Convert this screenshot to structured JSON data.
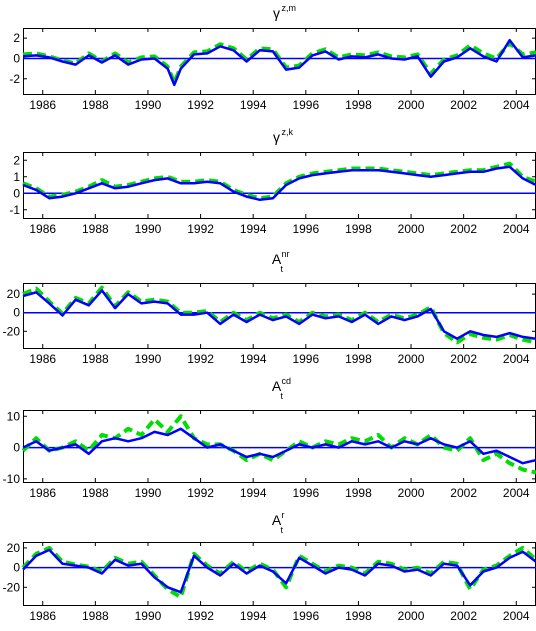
{
  "chart_data": [
    {
      "type": "line",
      "title": "γ",
      "title_sup": "z,m",
      "title_sub": "",
      "xlim": [
        1985.25,
        2004.75
      ],
      "ylim": [
        -3.5,
        3
      ],
      "xticks": [
        1986,
        1988,
        1990,
        1992,
        1994,
        1996,
        1998,
        2000,
        2002,
        2004
      ],
      "yticks": [
        -2,
        0,
        2
      ],
      "zero_line": true,
      "series": [
        {
          "color": "#0000ff",
          "style": "solid",
          "x": [
            1985.25,
            1985.75,
            1986.25,
            1986.75,
            1987.25,
            1987.75,
            1988.25,
            1988.75,
            1989.25,
            1989.75,
            1990.25,
            1990.75,
            1991.0,
            1991.25,
            1991.75,
            1992.25,
            1992.75,
            1993.25,
            1993.75,
            1994.25,
            1994.75,
            1995.25,
            1995.75,
            1996.25,
            1996.75,
            1997.25,
            1997.75,
            1998.25,
            1998.75,
            1999.25,
            1999.75,
            2000.25,
            2000.75,
            2001.25,
            2001.75,
            2002.25,
            2002.75,
            2003.25,
            2003.75,
            2004.25,
            2004.75
          ],
          "y": [
            0.2,
            0.3,
            0.1,
            -0.3,
            -0.6,
            0.3,
            -0.4,
            0.3,
            -0.6,
            -0.1,
            0,
            -1.0,
            -2.6,
            -1.0,
            0.4,
            0.5,
            1.2,
            0.8,
            -0.3,
            0.8,
            0.7,
            -1.1,
            -0.9,
            0.3,
            0.7,
            -0.1,
            0.2,
            0.1,
            0.4,
            0,
            -0.1,
            0.2,
            -1.8,
            -0.3,
            0.1,
            1.0,
            0.2,
            -0.3,
            1.8,
            0.1,
            0.3
          ]
        },
        {
          "color": "#00dd00",
          "style": "dashed",
          "x": [
            1985.25,
            1985.75,
            1986.25,
            1986.75,
            1987.25,
            1987.75,
            1988.25,
            1988.75,
            1989.25,
            1989.75,
            1990.25,
            1990.75,
            1991.0,
            1991.25,
            1991.75,
            1992.25,
            1992.75,
            1993.25,
            1993.75,
            1994.25,
            1994.75,
            1995.25,
            1995.75,
            1996.25,
            1996.75,
            1997.25,
            1997.75,
            1998.25,
            1998.75,
            1999.25,
            1999.75,
            2000.25,
            2000.75,
            2001.25,
            2001.75,
            2002.25,
            2002.75,
            2003.25,
            2003.75,
            2004.25,
            2004.75
          ],
          "y": [
            0.4,
            0.5,
            0.2,
            -0.2,
            -0.5,
            0.5,
            -0.3,
            0.5,
            -0.4,
            0.1,
            0.2,
            -0.8,
            -2.4,
            -0.8,
            0.6,
            0.7,
            1.4,
            1.0,
            -0.1,
            1.0,
            0.9,
            -0.9,
            -0.7,
            0.5,
            0.9,
            0.1,
            0.4,
            0.3,
            0.6,
            0.2,
            0.1,
            0.4,
            -1.5,
            -0.1,
            0.3,
            1.3,
            0.5,
            0,
            1.5,
            0.4,
            0.6
          ]
        }
      ]
    },
    {
      "type": "line",
      "title": "γ",
      "title_sup": "z,k",
      "title_sub": "",
      "xlim": [
        1985.25,
        2004.75
      ],
      "ylim": [
        -1.5,
        2.5
      ],
      "xticks": [
        1986,
        1988,
        1990,
        1992,
        1994,
        1996,
        1998,
        2000,
        2002,
        2004
      ],
      "yticks": [
        -1,
        0,
        1,
        2
      ],
      "zero_line": true,
      "series": [
        {
          "color": "#0000ff",
          "style": "solid",
          "x": [
            1985.25,
            1985.75,
            1986.25,
            1986.75,
            1987.25,
            1987.75,
            1988.25,
            1988.75,
            1989.25,
            1989.75,
            1990.25,
            1990.75,
            1991.25,
            1991.75,
            1992.25,
            1992.75,
            1993.25,
            1993.75,
            1994.25,
            1994.75,
            1995.25,
            1995.75,
            1996.25,
            1996.75,
            1997.25,
            1997.75,
            1998.25,
            1998.75,
            1999.25,
            1999.75,
            2000.25,
            2000.75,
            2001.25,
            2001.75,
            2002.25,
            2002.75,
            2003.25,
            2003.75,
            2004.25,
            2004.75
          ],
          "y": [
            0.5,
            0.2,
            -0.3,
            -0.2,
            0,
            0.3,
            0.6,
            0.3,
            0.4,
            0.6,
            0.8,
            0.9,
            0.6,
            0.6,
            0.7,
            0.6,
            0.1,
            -0.2,
            -0.4,
            -0.3,
            0.5,
            0.9,
            1.1,
            1.2,
            1.3,
            1.4,
            1.4,
            1.4,
            1.3,
            1.2,
            1.1,
            1.0,
            1.1,
            1.2,
            1.3,
            1.3,
            1.5,
            1.6,
            0.9,
            0.5
          ]
        },
        {
          "color": "#00dd00",
          "style": "dashed",
          "x": [
            1985.25,
            1985.75,
            1986.25,
            1986.75,
            1987.25,
            1987.75,
            1988.25,
            1988.75,
            1989.25,
            1989.75,
            1990.25,
            1990.75,
            1991.25,
            1991.75,
            1992.25,
            1992.75,
            1993.25,
            1993.75,
            1994.25,
            1994.75,
            1995.25,
            1995.75,
            1996.25,
            1996.75,
            1997.25,
            1997.75,
            1998.25,
            1998.75,
            1999.25,
            1999.75,
            2000.25,
            2000.75,
            2001.25,
            2001.75,
            2002.25,
            2002.75,
            2003.25,
            2003.75,
            2004.25,
            2004.75
          ],
          "y": [
            0.6,
            0.3,
            -0.2,
            -0.1,
            0.1,
            0.4,
            0.8,
            0.4,
            0.5,
            0.7,
            0.9,
            1.0,
            0.7,
            0.7,
            0.8,
            0.7,
            0.2,
            -0.1,
            -0.3,
            -0.2,
            0.6,
            1.0,
            1.2,
            1.3,
            1.4,
            1.5,
            1.5,
            1.5,
            1.4,
            1.3,
            1.2,
            1.1,
            1.2,
            1.3,
            1.4,
            1.4,
            1.6,
            1.8,
            1.0,
            0.7
          ]
        }
      ]
    },
    {
      "type": "line",
      "title": "A",
      "title_sup": "nr",
      "title_sub": "t",
      "xlim": [
        1985.25,
        2004.75
      ],
      "ylim": [
        -38,
        32
      ],
      "xticks": [
        1986,
        1988,
        1990,
        1992,
        1994,
        1996,
        1998,
        2000,
        2002,
        2004
      ],
      "yticks": [
        -20,
        0,
        20
      ],
      "zero_line": true,
      "series": [
        {
          "color": "#0000ff",
          "style": "solid",
          "x": [
            1985.25,
            1985.75,
            1986.25,
            1986.75,
            1987.25,
            1987.75,
            1988.25,
            1988.75,
            1989.25,
            1989.75,
            1990.25,
            1990.75,
            1991.25,
            1991.75,
            1992.25,
            1992.75,
            1993.25,
            1993.75,
            1994.25,
            1994.75,
            1995.25,
            1995.75,
            1996.25,
            1996.75,
            1997.25,
            1997.75,
            1998.25,
            1998.75,
            1999.25,
            1999.75,
            2000.25,
            2000.75,
            2001.25,
            2001.75,
            2002.25,
            2002.75,
            2003.25,
            2003.75,
            2004.25,
            2004.75
          ],
          "y": [
            18,
            22,
            10,
            -3,
            14,
            8,
            24,
            5,
            20,
            10,
            12,
            10,
            -2,
            -2,
            0,
            -12,
            -2,
            -10,
            -2,
            -8,
            -4,
            -12,
            -2,
            -6,
            -4,
            -10,
            -2,
            -12,
            -4,
            -8,
            -4,
            4,
            -20,
            -28,
            -20,
            -24,
            -26,
            -22,
            -26,
            -28
          ]
        },
        {
          "color": "#00dd00",
          "style": "dashed",
          "x": [
            1985.25,
            1985.75,
            1986.25,
            1986.75,
            1987.25,
            1987.75,
            1988.25,
            1988.75,
            1989.25,
            1989.75,
            1990.25,
            1990.75,
            1991.25,
            1991.75,
            1992.25,
            1992.75,
            1993.25,
            1993.75,
            1994.25,
            1994.75,
            1995.25,
            1995.75,
            1996.25,
            1996.75,
            1997.25,
            1997.75,
            1998.25,
            1998.75,
            1999.25,
            1999.75,
            2000.25,
            2000.75,
            2001.25,
            2001.75,
            2002.25,
            2002.75,
            2003.25,
            2003.75,
            2004.25,
            2004.75
          ],
          "y": [
            20,
            26,
            12,
            -1,
            16,
            10,
            27,
            7,
            22,
            12,
            14,
            12,
            0,
            0,
            2,
            -10,
            0,
            -8,
            0,
            -6,
            -2,
            -10,
            0,
            -4,
            -2,
            -8,
            0,
            -10,
            -2,
            -6,
            -2,
            6,
            -22,
            -32,
            -23,
            -27,
            -29,
            -24,
            -29,
            -32
          ]
        }
      ]
    },
    {
      "type": "line",
      "title": "A",
      "title_sup": "cd",
      "title_sub": "t",
      "xlim": [
        1985.25,
        2004.75
      ],
      "ylim": [
        -11,
        12
      ],
      "xticks": [
        1986,
        1988,
        1990,
        1992,
        1994,
        1996,
        1998,
        2000,
        2002,
        2004
      ],
      "yticks": [
        -10,
        0,
        10
      ],
      "zero_line": true,
      "series": [
        {
          "color": "#0000ff",
          "style": "solid",
          "x": [
            1985.25,
            1985.75,
            1986.25,
            1986.75,
            1987.25,
            1987.75,
            1988.25,
            1988.75,
            1989.25,
            1989.75,
            1990.25,
            1990.75,
            1991.25,
            1991.75,
            1992.25,
            1992.75,
            1993.25,
            1993.75,
            1994.25,
            1994.75,
            1995.25,
            1995.75,
            1996.25,
            1996.75,
            1997.25,
            1997.75,
            1998.25,
            1998.75,
            1999.25,
            1999.75,
            2000.25,
            2000.75,
            2001.25,
            2001.75,
            2002.25,
            2002.75,
            2003.25,
            2003.75,
            2004.25,
            2004.75
          ],
          "y": [
            0,
            2,
            -1,
            0,
            1,
            -2,
            2,
            3,
            2,
            3,
            5,
            4,
            6,
            3,
            0,
            1,
            -1,
            -3,
            -2,
            -3,
            -1,
            1,
            0,
            1,
            0,
            2,
            1,
            2,
            0,
            2,
            1,
            3,
            1,
            0,
            2,
            -2,
            -1,
            -3,
            -5,
            -4
          ]
        },
        {
          "color": "#00dd00",
          "style": "dashed",
          "x": [
            1985.25,
            1985.75,
            1986.25,
            1986.75,
            1987.25,
            1987.75,
            1988.25,
            1988.75,
            1989.25,
            1989.75,
            1990.25,
            1990.75,
            1991.25,
            1991.75,
            1992.25,
            1992.75,
            1993.25,
            1993.75,
            1994.25,
            1994.75,
            1995.25,
            1995.75,
            1996.25,
            1996.75,
            1997.25,
            1997.75,
            1998.25,
            1998.75,
            1999.25,
            1999.75,
            2000.25,
            2000.75,
            2001.25,
            2001.75,
            2002.25,
            2002.75,
            2003.25,
            2003.75,
            2004.25,
            2004.75
          ],
          "y": [
            -1,
            3,
            -1,
            0,
            2,
            -1,
            4,
            3,
            6,
            4,
            9,
            5,
            10,
            3,
            1,
            1,
            -1,
            -4,
            -2,
            -4,
            -1,
            2,
            0,
            2,
            1,
            3,
            2,
            4,
            0,
            3,
            1,
            4,
            0,
            -1,
            3,
            -4,
            -2,
            -5,
            -7,
            -8
          ]
        }
      ]
    },
    {
      "type": "line",
      "title": "A",
      "title_sup": "r",
      "title_sub": "t",
      "xlim": [
        1985.25,
        2004.75
      ],
      "ylim": [
        -38,
        26
      ],
      "xticks": [
        1986,
        1988,
        1990,
        1992,
        1994,
        1996,
        1998,
        2000,
        2002,
        2004
      ],
      "yticks": [
        -20,
        0,
        20
      ],
      "zero_line": true,
      "series": [
        {
          "color": "#0000ff",
          "style": "solid",
          "x": [
            1985.25,
            1985.75,
            1986.25,
            1986.75,
            1987.25,
            1987.75,
            1988.25,
            1988.75,
            1989.25,
            1989.75,
            1990.25,
            1990.75,
            1991.25,
            1991.75,
            1992.25,
            1992.75,
            1993.25,
            1993.75,
            1994.25,
            1994.75,
            1995.25,
            1995.75,
            1996.25,
            1996.75,
            1997.25,
            1997.75,
            1998.25,
            1998.75,
            1999.25,
            1999.75,
            2000.25,
            2000.75,
            2001.25,
            2001.75,
            2002.25,
            2002.75,
            2003.25,
            2003.75,
            2004.25,
            2004.75
          ],
          "y": [
            -2,
            12,
            18,
            4,
            2,
            0,
            -6,
            8,
            2,
            4,
            -10,
            -20,
            -25,
            12,
            0,
            -8,
            4,
            -6,
            2,
            -4,
            -16,
            10,
            2,
            -6,
            0,
            -2,
            -8,
            4,
            2,
            -4,
            -2,
            -8,
            4,
            2,
            -18,
            -4,
            0,
            10,
            16,
            6
          ]
        },
        {
          "color": "#00dd00",
          "style": "dashed",
          "x": [
            1985.25,
            1985.75,
            1986.25,
            1986.75,
            1987.25,
            1987.75,
            1988.25,
            1988.75,
            1989.25,
            1989.75,
            1990.25,
            1990.75,
            1991.25,
            1991.75,
            1992.25,
            1992.75,
            1993.25,
            1993.75,
            1994.25,
            1994.75,
            1995.25,
            1995.75,
            1996.25,
            1996.75,
            1997.25,
            1997.75,
            1998.25,
            1998.75,
            1999.25,
            1999.75,
            2000.25,
            2000.75,
            2001.25,
            2001.75,
            2002.25,
            2002.75,
            2003.25,
            2003.75,
            2004.25,
            2004.75
          ],
          "y": [
            0,
            14,
            20,
            6,
            3,
            1,
            -4,
            10,
            4,
            6,
            -8,
            -22,
            -30,
            14,
            2,
            -6,
            6,
            -4,
            4,
            -2,
            -20,
            12,
            4,
            -4,
            2,
            0,
            -6,
            6,
            4,
            -2,
            0,
            -6,
            6,
            4,
            -22,
            -2,
            2,
            12,
            20,
            8
          ]
        }
      ]
    }
  ]
}
